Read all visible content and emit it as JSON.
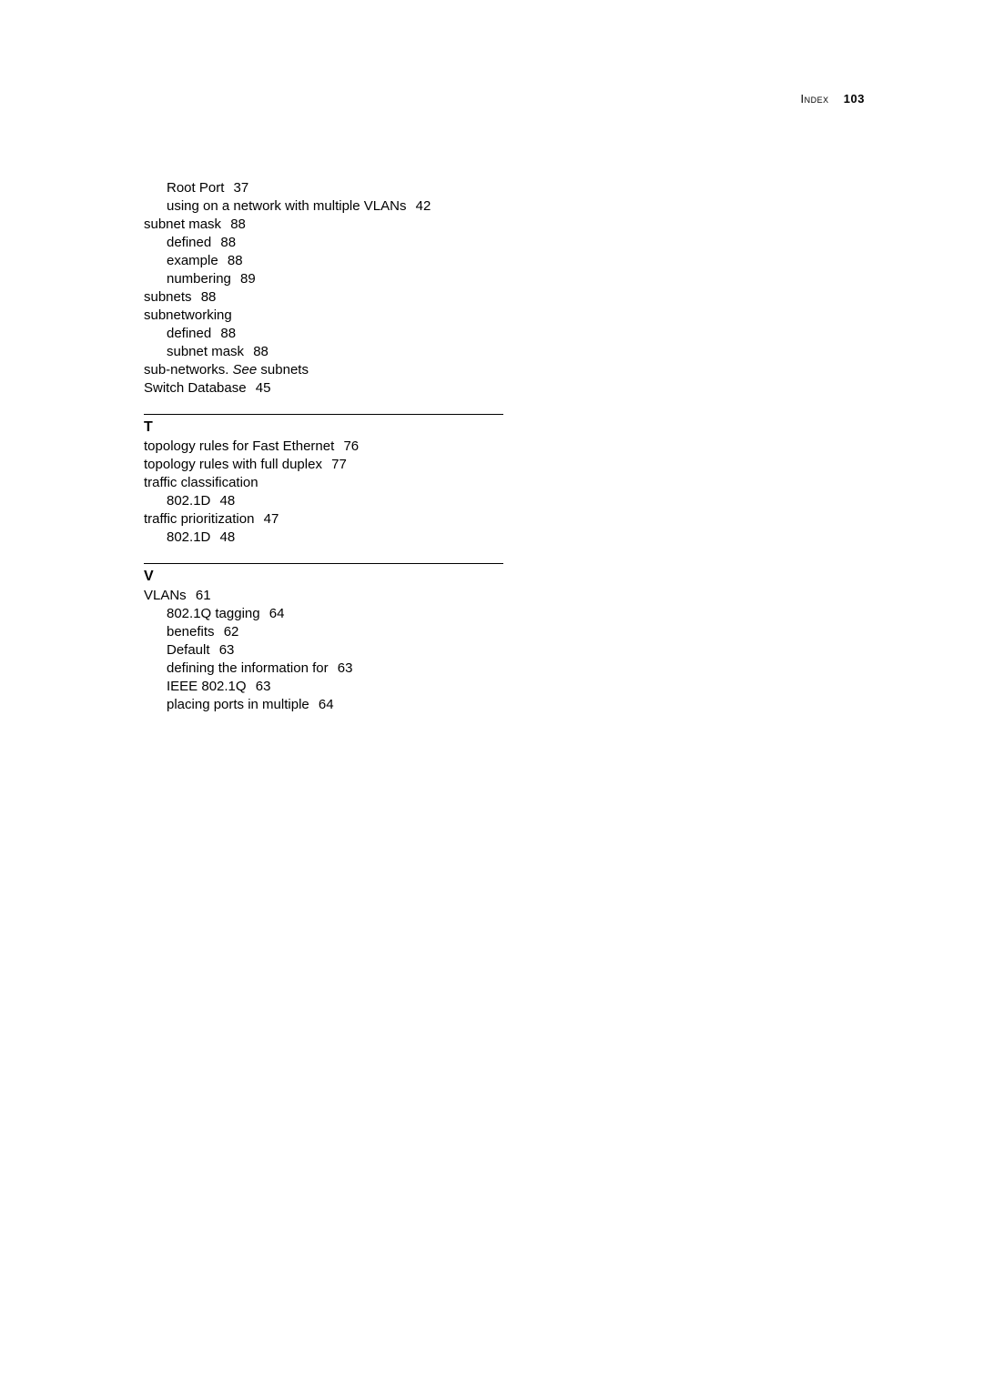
{
  "header": {
    "label": "Index",
    "page_number": "103"
  },
  "sections": [
    {
      "letter": null,
      "divider": false,
      "entries": [
        {
          "text": "Root Port",
          "page": "37",
          "indent": 1
        },
        {
          "text": "using on a network with multiple VLANs",
          "page": "42",
          "indent": 1
        },
        {
          "text": "subnet mask",
          "page": "88",
          "indent": 0
        },
        {
          "text": "defined",
          "page": "88",
          "indent": 1
        },
        {
          "text": "example",
          "page": "88",
          "indent": 1
        },
        {
          "text": "numbering",
          "page": "89",
          "indent": 1
        },
        {
          "text": "subnets",
          "page": "88",
          "indent": 0
        },
        {
          "text": "subnetworking",
          "page": null,
          "indent": 0
        },
        {
          "text": "defined",
          "page": "88",
          "indent": 1
        },
        {
          "text": "subnet mask",
          "page": "88",
          "indent": 1
        },
        {
          "text_parts": [
            {
              "t": "sub-networks. ",
              "italic": false
            },
            {
              "t": "See",
              "italic": true
            },
            {
              "t": " subnets",
              "italic": false
            }
          ],
          "page": null,
          "indent": 0
        },
        {
          "text": "Switch Database",
          "page": "45",
          "indent": 0
        }
      ]
    },
    {
      "letter": "T",
      "divider": true,
      "entries": [
        {
          "text": "topology rules for Fast Ethernet",
          "page": "76",
          "indent": 0
        },
        {
          "text": "topology rules with full duplex",
          "page": "77",
          "indent": 0
        },
        {
          "text": "traffic classification",
          "page": null,
          "indent": 0
        },
        {
          "text": "802.1D",
          "page": "48",
          "indent": 1
        },
        {
          "text": "traffic prioritization",
          "page": "47",
          "indent": 0
        },
        {
          "text": "802.1D",
          "page": "48",
          "indent": 1
        }
      ]
    },
    {
      "letter": "V",
      "divider": true,
      "entries": [
        {
          "text": "VLANs",
          "page": "61",
          "indent": 0
        },
        {
          "text": "802.1Q tagging",
          "page": "64",
          "indent": 1
        },
        {
          "text": "benefits",
          "page": "62",
          "indent": 1
        },
        {
          "text": "Default",
          "page": "63",
          "indent": 1
        },
        {
          "text": "defining the information for",
          "page": "63",
          "indent": 1
        },
        {
          "text": "IEEE 802.1Q",
          "page": "63",
          "indent": 1
        },
        {
          "text": "placing ports in multiple",
          "page": "64",
          "indent": 1
        }
      ]
    }
  ]
}
